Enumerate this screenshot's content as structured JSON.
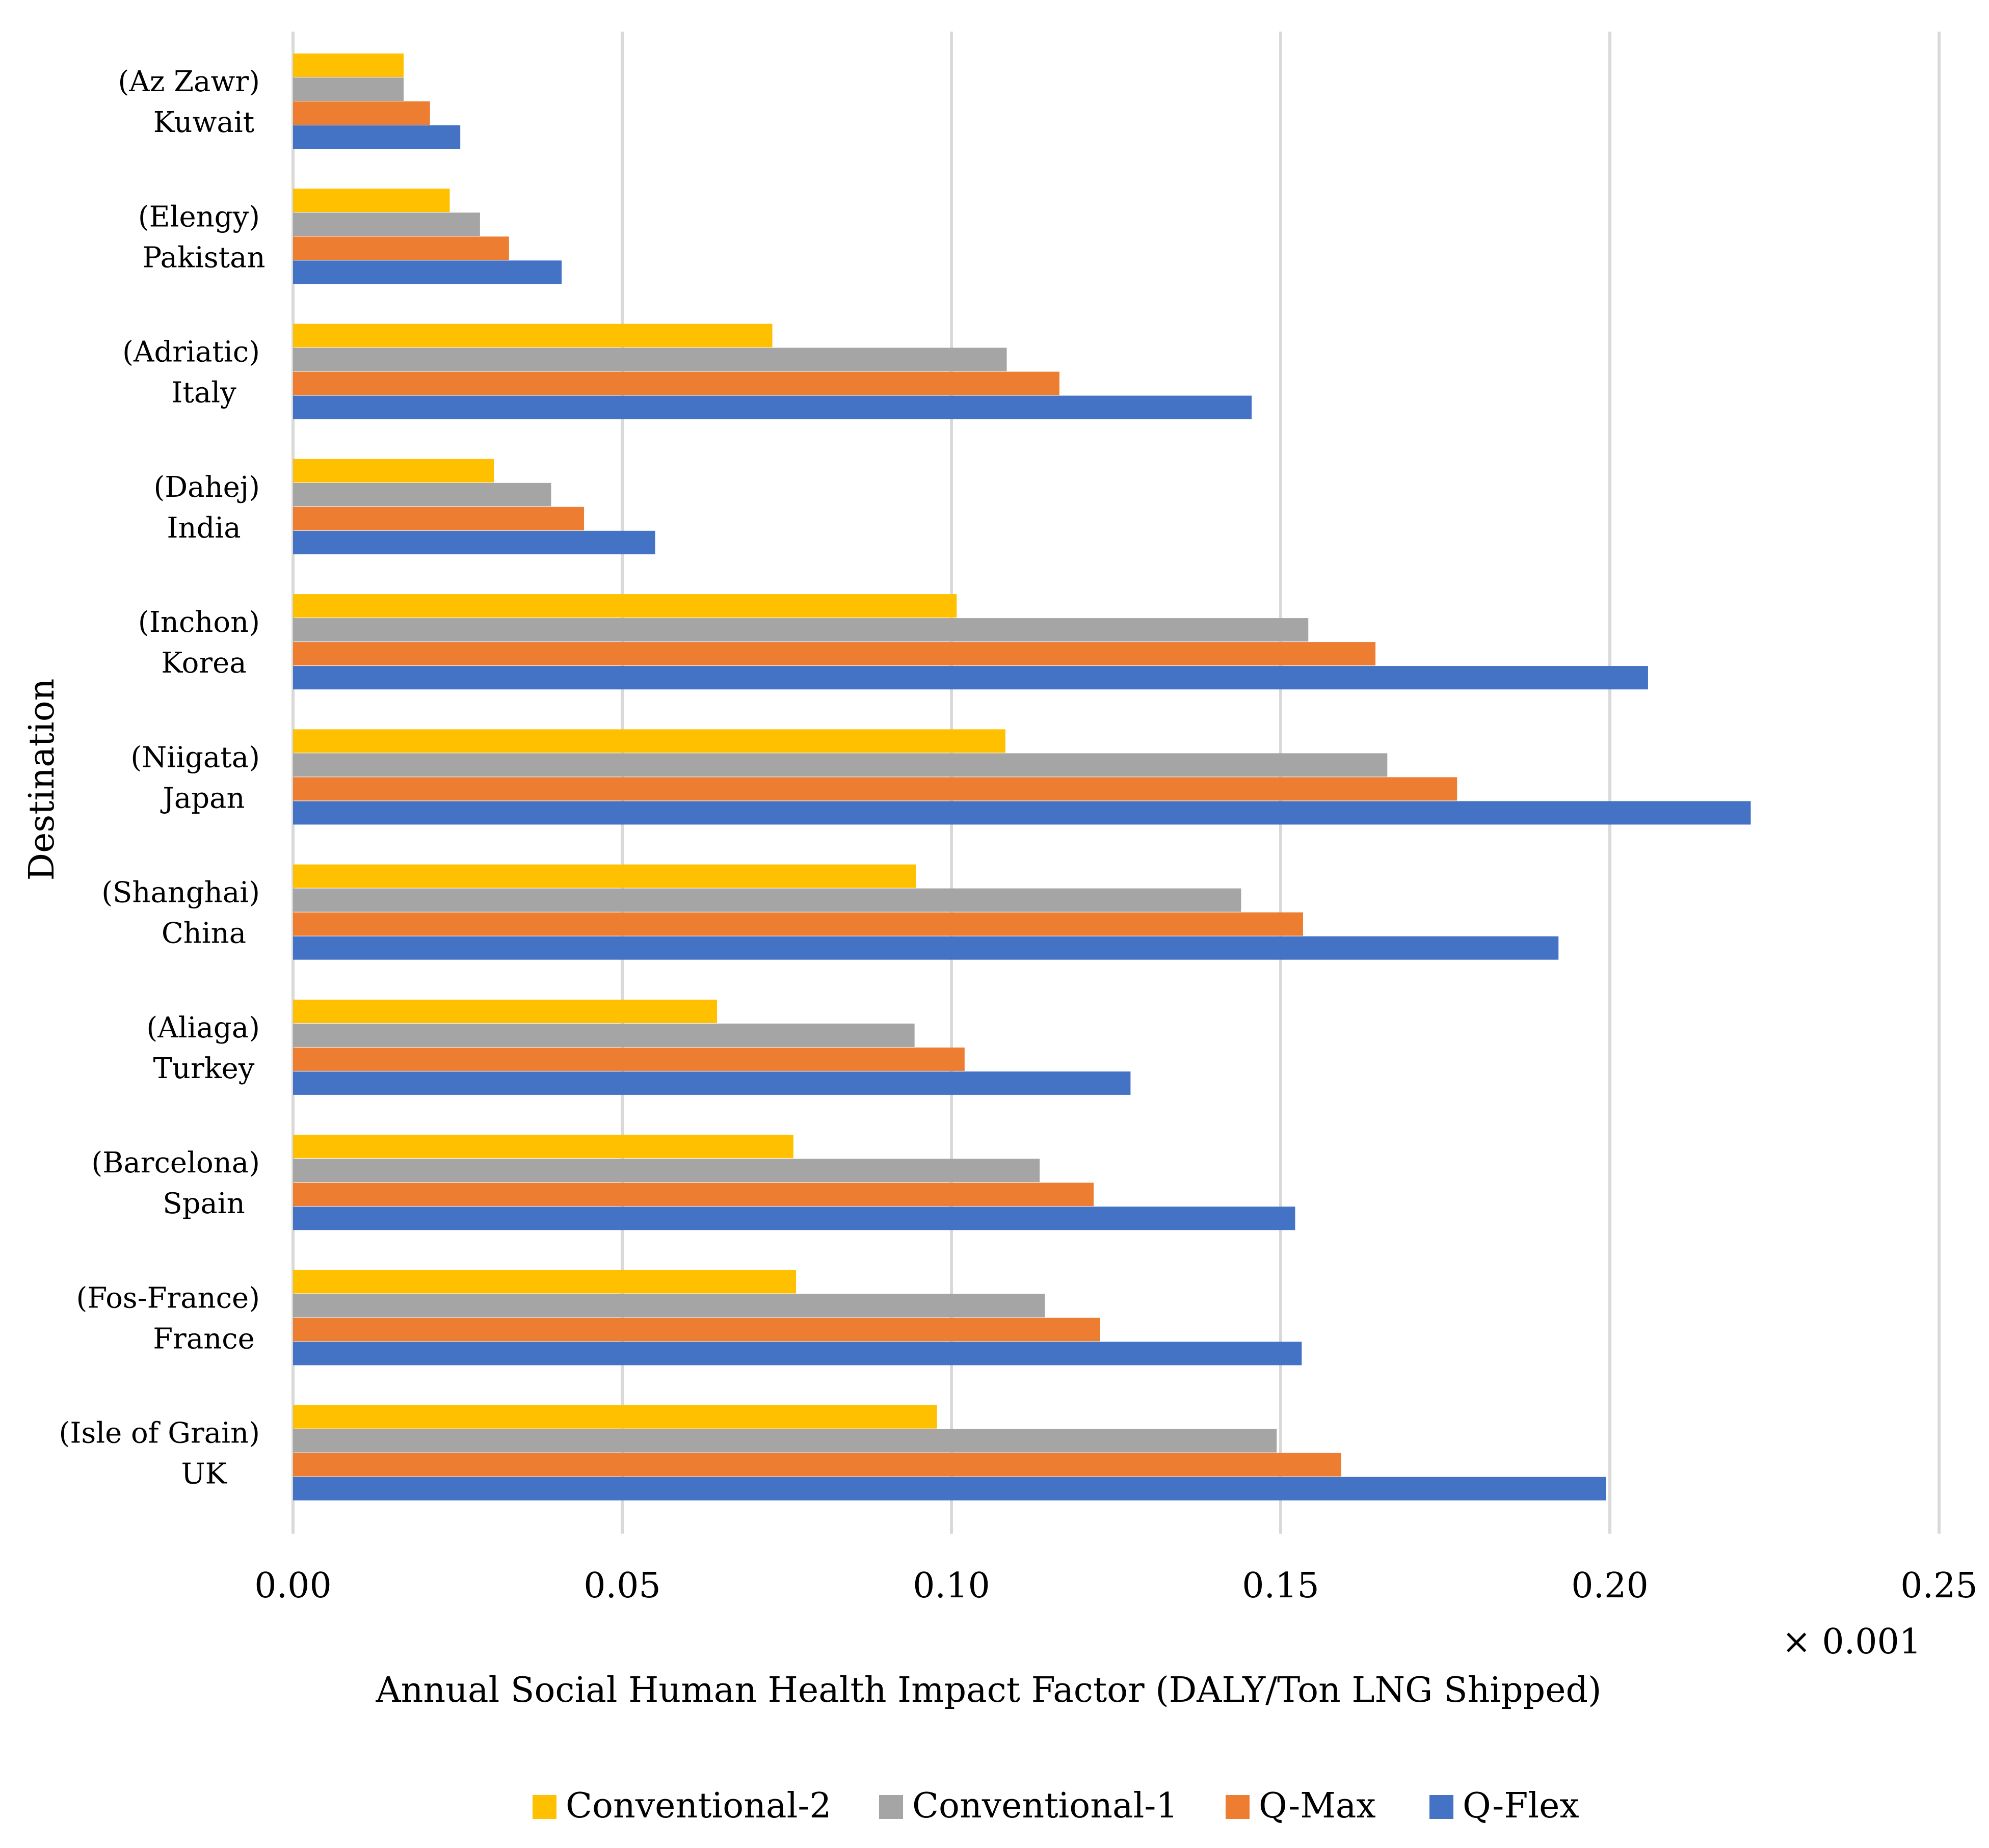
{
  "chart_data": {
    "type": "bar",
    "orientation": "horizontal",
    "title": "",
    "xlabel": "Annual Social Human Health Impact Factor (DALY/Ton LNG Shipped)",
    "ylabel": "Destination",
    "x_multiplier_label": "× 0.001",
    "xlim": [
      0,
      0.25
    ],
    "x_ticks": [
      "0.00",
      "0.05",
      "0.10",
      "0.15",
      "0.20",
      "0.25"
    ],
    "grid": "vertical",
    "legend_position": "bottom",
    "categories": [
      {
        "line1": "(Az Zawr)",
        "line2": "Kuwait"
      },
      {
        "line1": "(Elengy)",
        "line2": "Pakistan"
      },
      {
        "line1": "(Adriatic)",
        "line2": "Italy"
      },
      {
        "line1": "(Dahej)",
        "line2": "India"
      },
      {
        "line1": "(Inchon)",
        "line2": "Korea"
      },
      {
        "line1": "(Niigata)",
        "line2": "Japan"
      },
      {
        "line1": "(Shanghai)",
        "line2": "China"
      },
      {
        "line1": "(Aliaga)",
        "line2": "Turkey"
      },
      {
        "line1": "(Barcelona)",
        "line2": "Spain"
      },
      {
        "line1": "(Fos-France)",
        "line2": "France"
      },
      {
        "line1": "(Isle of Grain)",
        "line2": "UK"
      }
    ],
    "series": [
      {
        "name": "Conventional-2",
        "color": "#FFC000",
        "values": [
          0.0168,
          0.0238,
          0.0728,
          0.0305,
          0.1008,
          0.1082,
          0.0946,
          0.0644,
          0.076,
          0.0764,
          0.0978
        ]
      },
      {
        "name": "Conventional-1",
        "color": "#A5A5A5",
        "values": [
          0.0168,
          0.0284,
          0.1084,
          0.0392,
          0.1542,
          0.1662,
          0.144,
          0.0944,
          0.1134,
          0.1142,
          0.1494
        ]
      },
      {
        "name": "Q-Max",
        "color": "#ED7D31",
        "values": [
          0.0208,
          0.0328,
          0.1164,
          0.0442,
          0.1644,
          0.1768,
          0.1534,
          0.102,
          0.1216,
          0.1226,
          0.1592
        ]
      },
      {
        "name": "Q-Flex",
        "color": "#4472C4",
        "values": [
          0.0254,
          0.0408,
          0.1456,
          0.055,
          0.2058,
          0.2214,
          0.1922,
          0.1272,
          0.1522,
          0.1532,
          0.1994
        ]
      }
    ]
  }
}
